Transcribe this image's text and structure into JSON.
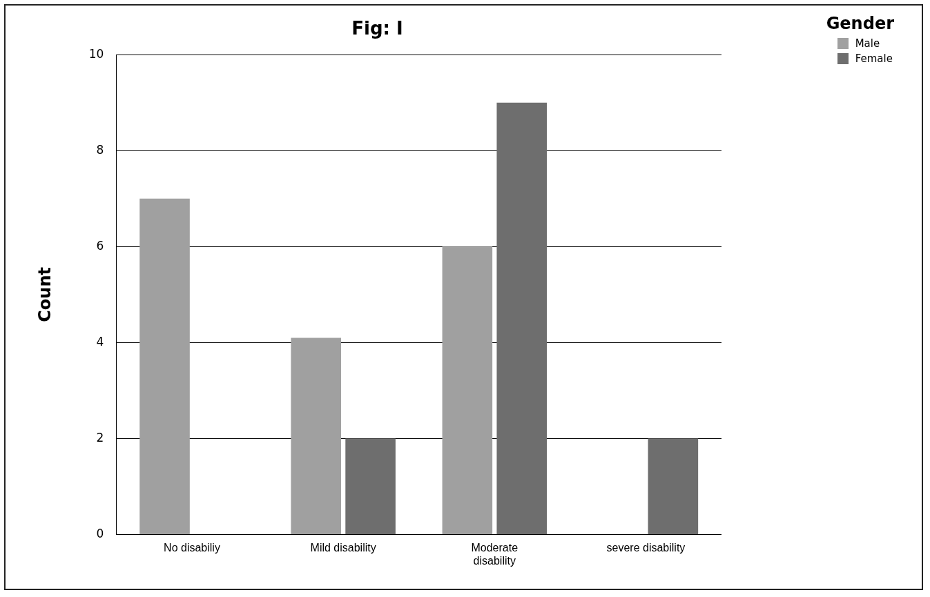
{
  "chart_data": {
    "type": "bar",
    "title": "Fig: I",
    "ylabel": "Count",
    "legend_title": "Gender",
    "categories": [
      "No disabiliy",
      "Mild disability",
      "Moderate disability",
      "severe disability"
    ],
    "series": [
      {
        "name": "Male",
        "color": "#a0a0a0",
        "values": [
          7,
          4.1,
          6,
          0
        ]
      },
      {
        "name": "Female",
        "color": "#6e6e6e",
        "values": [
          0,
          2,
          9,
          2
        ]
      }
    ],
    "ylim": [
      0,
      10
    ],
    "yticks": [
      0,
      2,
      4,
      6,
      8,
      10
    ],
    "grid": "y",
    "legend": "top right"
  }
}
